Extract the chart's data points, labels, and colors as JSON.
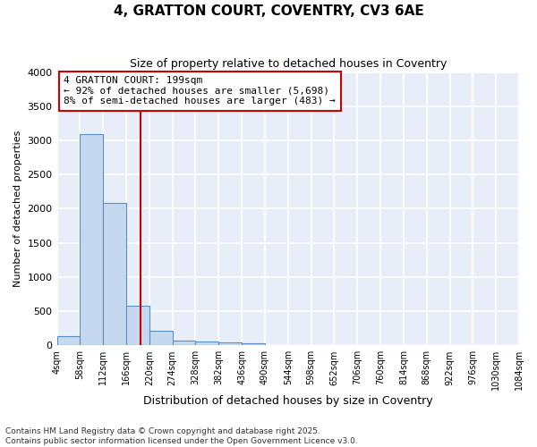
{
  "title": "4, GRATTON COURT, COVENTRY, CV3 6AE",
  "subtitle": "Size of property relative to detached houses in Coventry",
  "xlabel": "Distribution of detached houses by size in Coventry",
  "ylabel": "Number of detached properties",
  "bin_labels": [
    "4sqm",
    "58sqm",
    "112sqm",
    "166sqm",
    "220sqm",
    "274sqm",
    "328sqm",
    "382sqm",
    "436sqm",
    "490sqm",
    "544sqm",
    "598sqm",
    "652sqm",
    "706sqm",
    "760sqm",
    "814sqm",
    "868sqm",
    "922sqm",
    "976sqm",
    "1030sqm",
    "1084sqm"
  ],
  "bar_values": [
    140,
    3090,
    2090,
    580,
    210,
    70,
    55,
    40,
    30,
    0,
    0,
    0,
    0,
    0,
    0,
    0,
    0,
    0,
    0,
    0
  ],
  "bar_color": "#c5d8f0",
  "bar_edge_color": "#5a8fc2",
  "marker_value": 199,
  "marker_label": "4 GRATTON COURT: 199sqm",
  "annotation_line1": "← 92% of detached houses are smaller (5,698)",
  "annotation_line2": "8% of semi-detached houses are larger (483) →",
  "annotation_box_color": "#ffffff",
  "annotation_box_edge": "#cc0000",
  "vline_color": "#cc0000",
  "ylim": [
    0,
    4000
  ],
  "yticks": [
    0,
    500,
    1000,
    1500,
    2000,
    2500,
    3000,
    3500,
    4000
  ],
  "background_color": "#ffffff",
  "plot_bg_color": "#e8eef8",
  "grid_color": "#ffffff",
  "footer_line1": "Contains HM Land Registry data © Crown copyright and database right 2025.",
  "footer_line2": "Contains public sector information licensed under the Open Government Licence v3.0."
}
